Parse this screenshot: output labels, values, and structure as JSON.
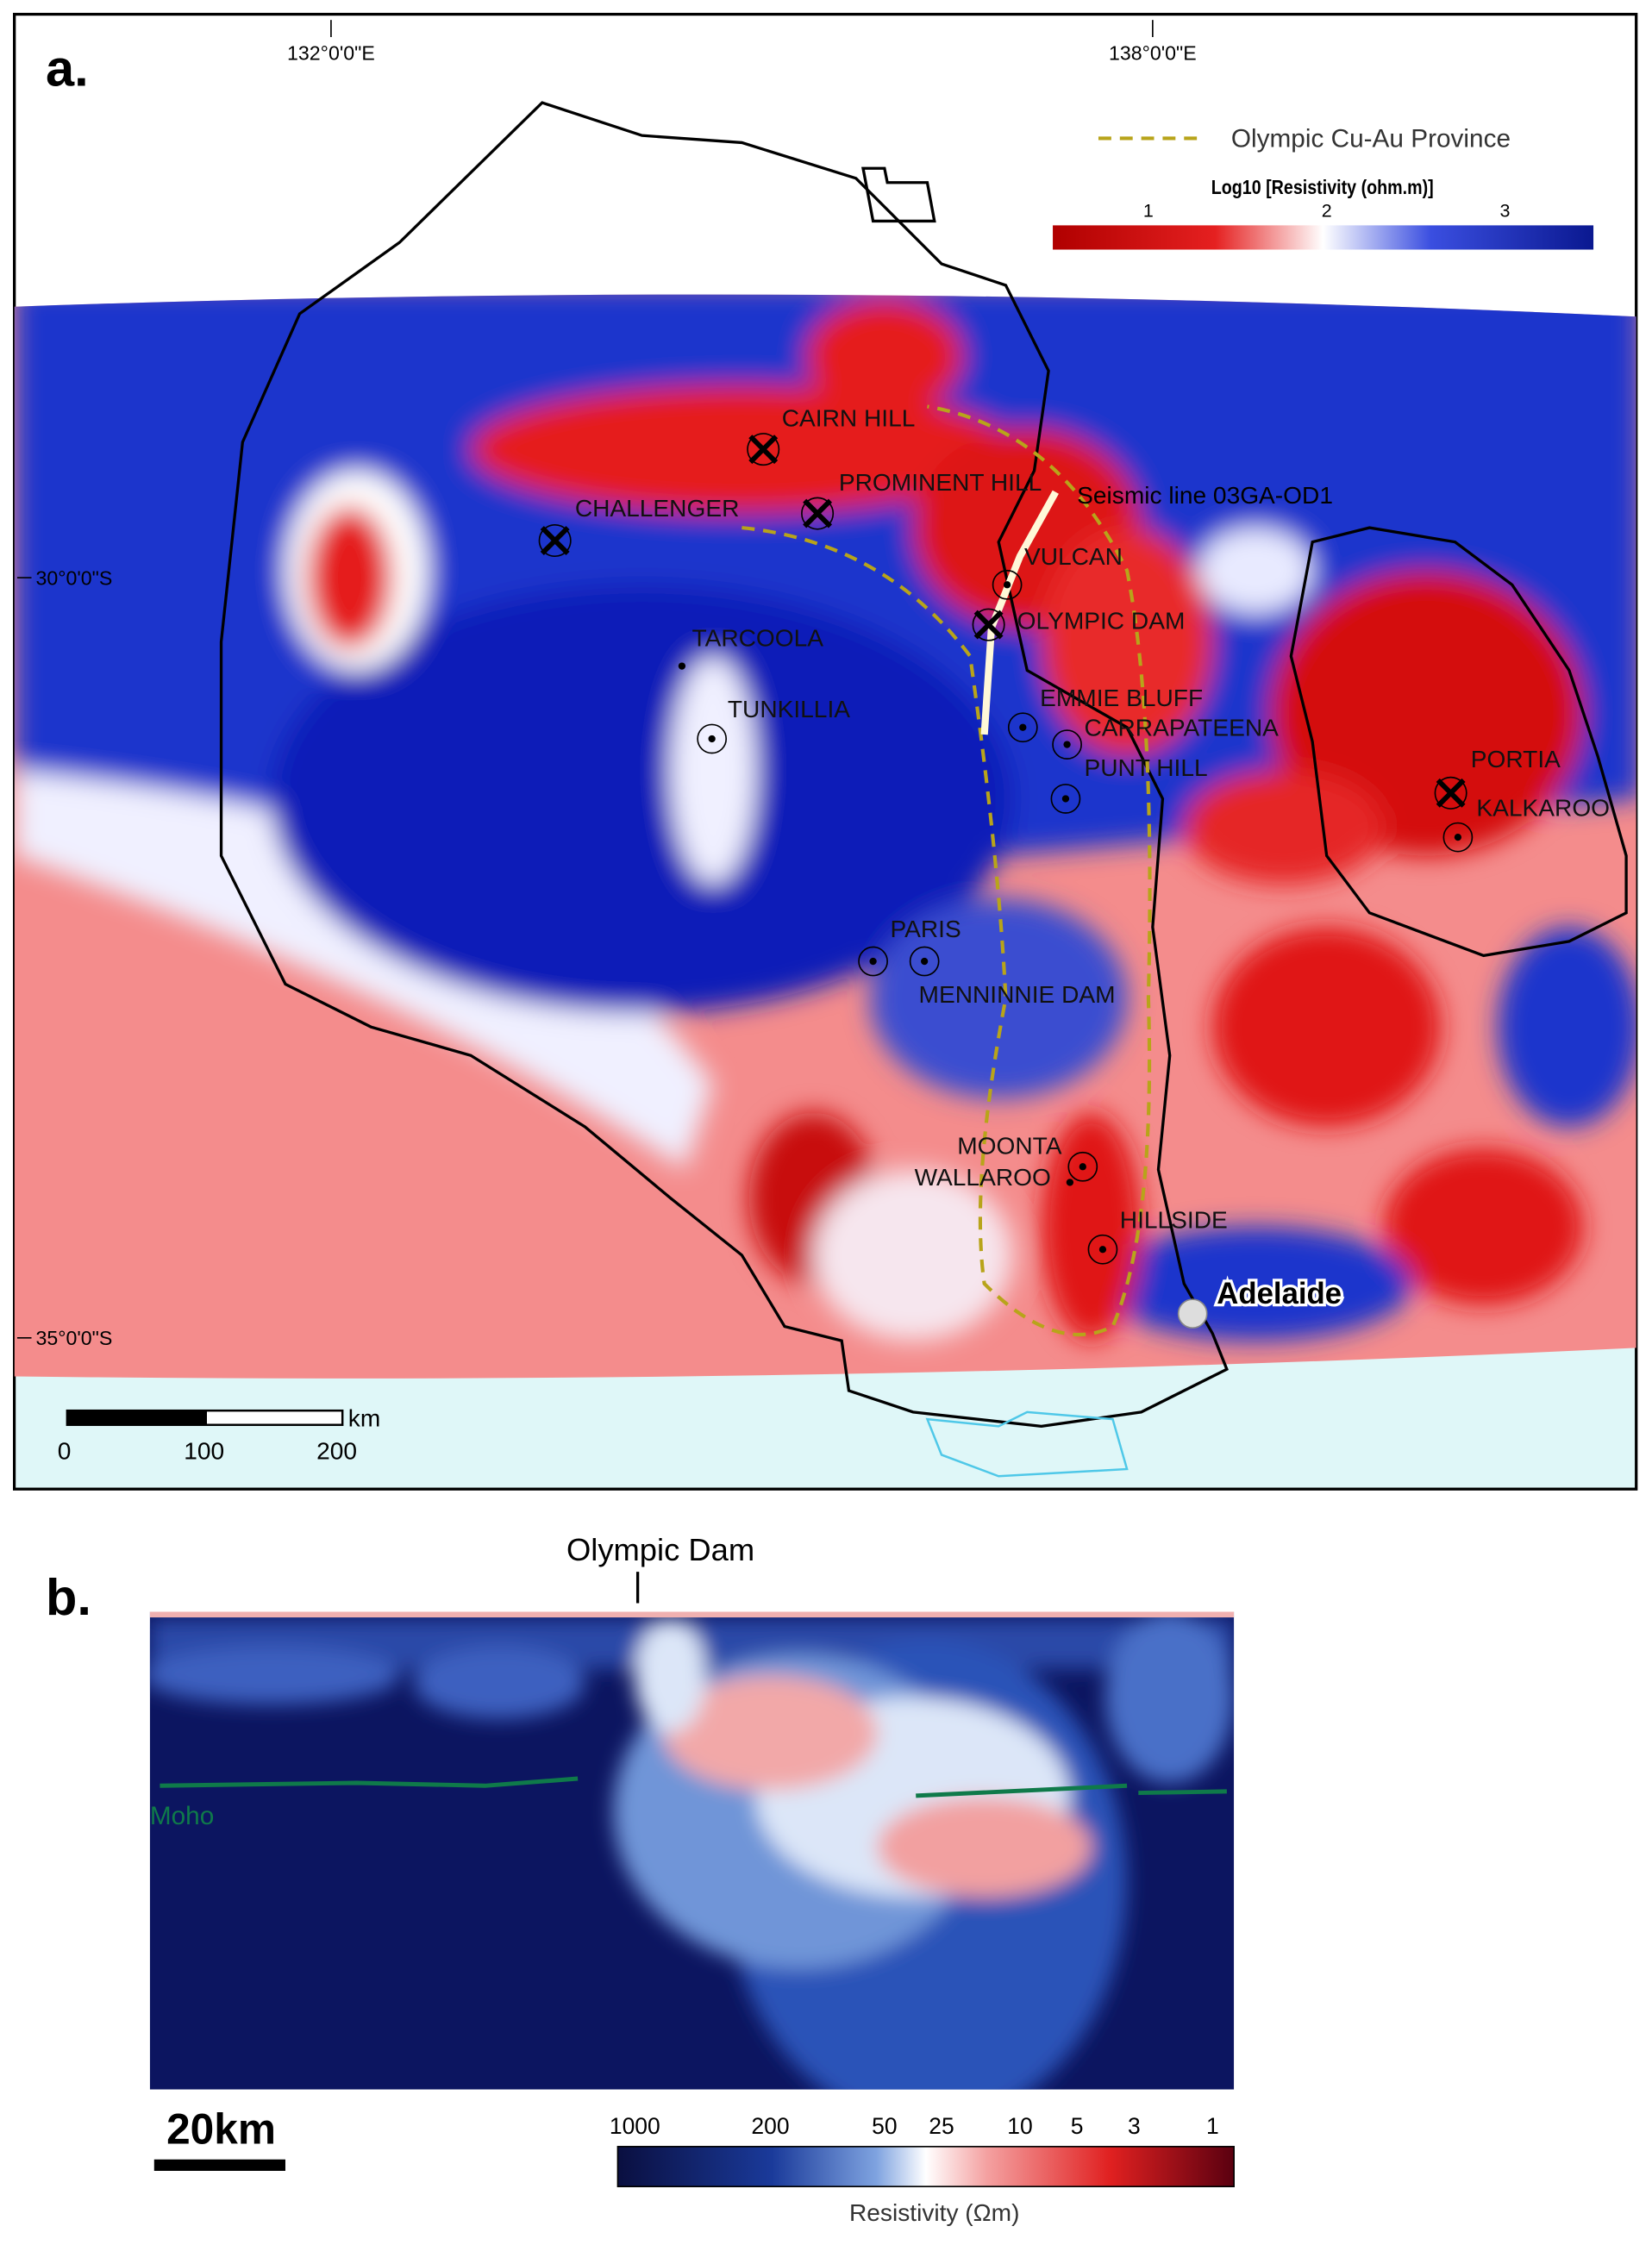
{
  "panel_a": {
    "label": "a.",
    "lon_labels": [
      "132°0'0\"E",
      "138°0'0\"E"
    ],
    "lat_labels": [
      "30°0'0\"S",
      "35°0'0\"S"
    ],
    "legend": {
      "line_label": "Olympic Cu-Au Province",
      "colorbar_title": "Log10 [Resistivity (ohm.m)]",
      "colorbar_ticks": [
        "1",
        "2",
        "3"
      ]
    },
    "seismic_label": "Seismic line 03GA-OD1",
    "city": "Adelaide",
    "sites": [
      "CAIRN HILL",
      "PROMINENT HILL",
      "CHALLENGER",
      "VULCAN",
      "OLYMPIC DAM",
      "TARCOOLA",
      "TUNKILLIA",
      "EMMIE BLUFF",
      "CARRAPATEENA",
      "PUNT HILL",
      "PORTIA",
      "KALKAROO",
      "PARIS",
      "MENNINNIE DAM",
      "MOONTA",
      "WALLAROO",
      "HILLSIDE"
    ],
    "scale": {
      "unit": "km",
      "ticks": [
        "0",
        "100",
        "200"
      ]
    }
  },
  "panel_b": {
    "label": "b.",
    "top_label": "Olympic Dam",
    "moho_label": "Moho",
    "scale_label": "20km",
    "colorbar_ticks": [
      "1000",
      "200",
      "50",
      "25",
      "10",
      "5",
      "3",
      "1"
    ],
    "colorbar_title": "Resistivity (Ωm)"
  }
}
